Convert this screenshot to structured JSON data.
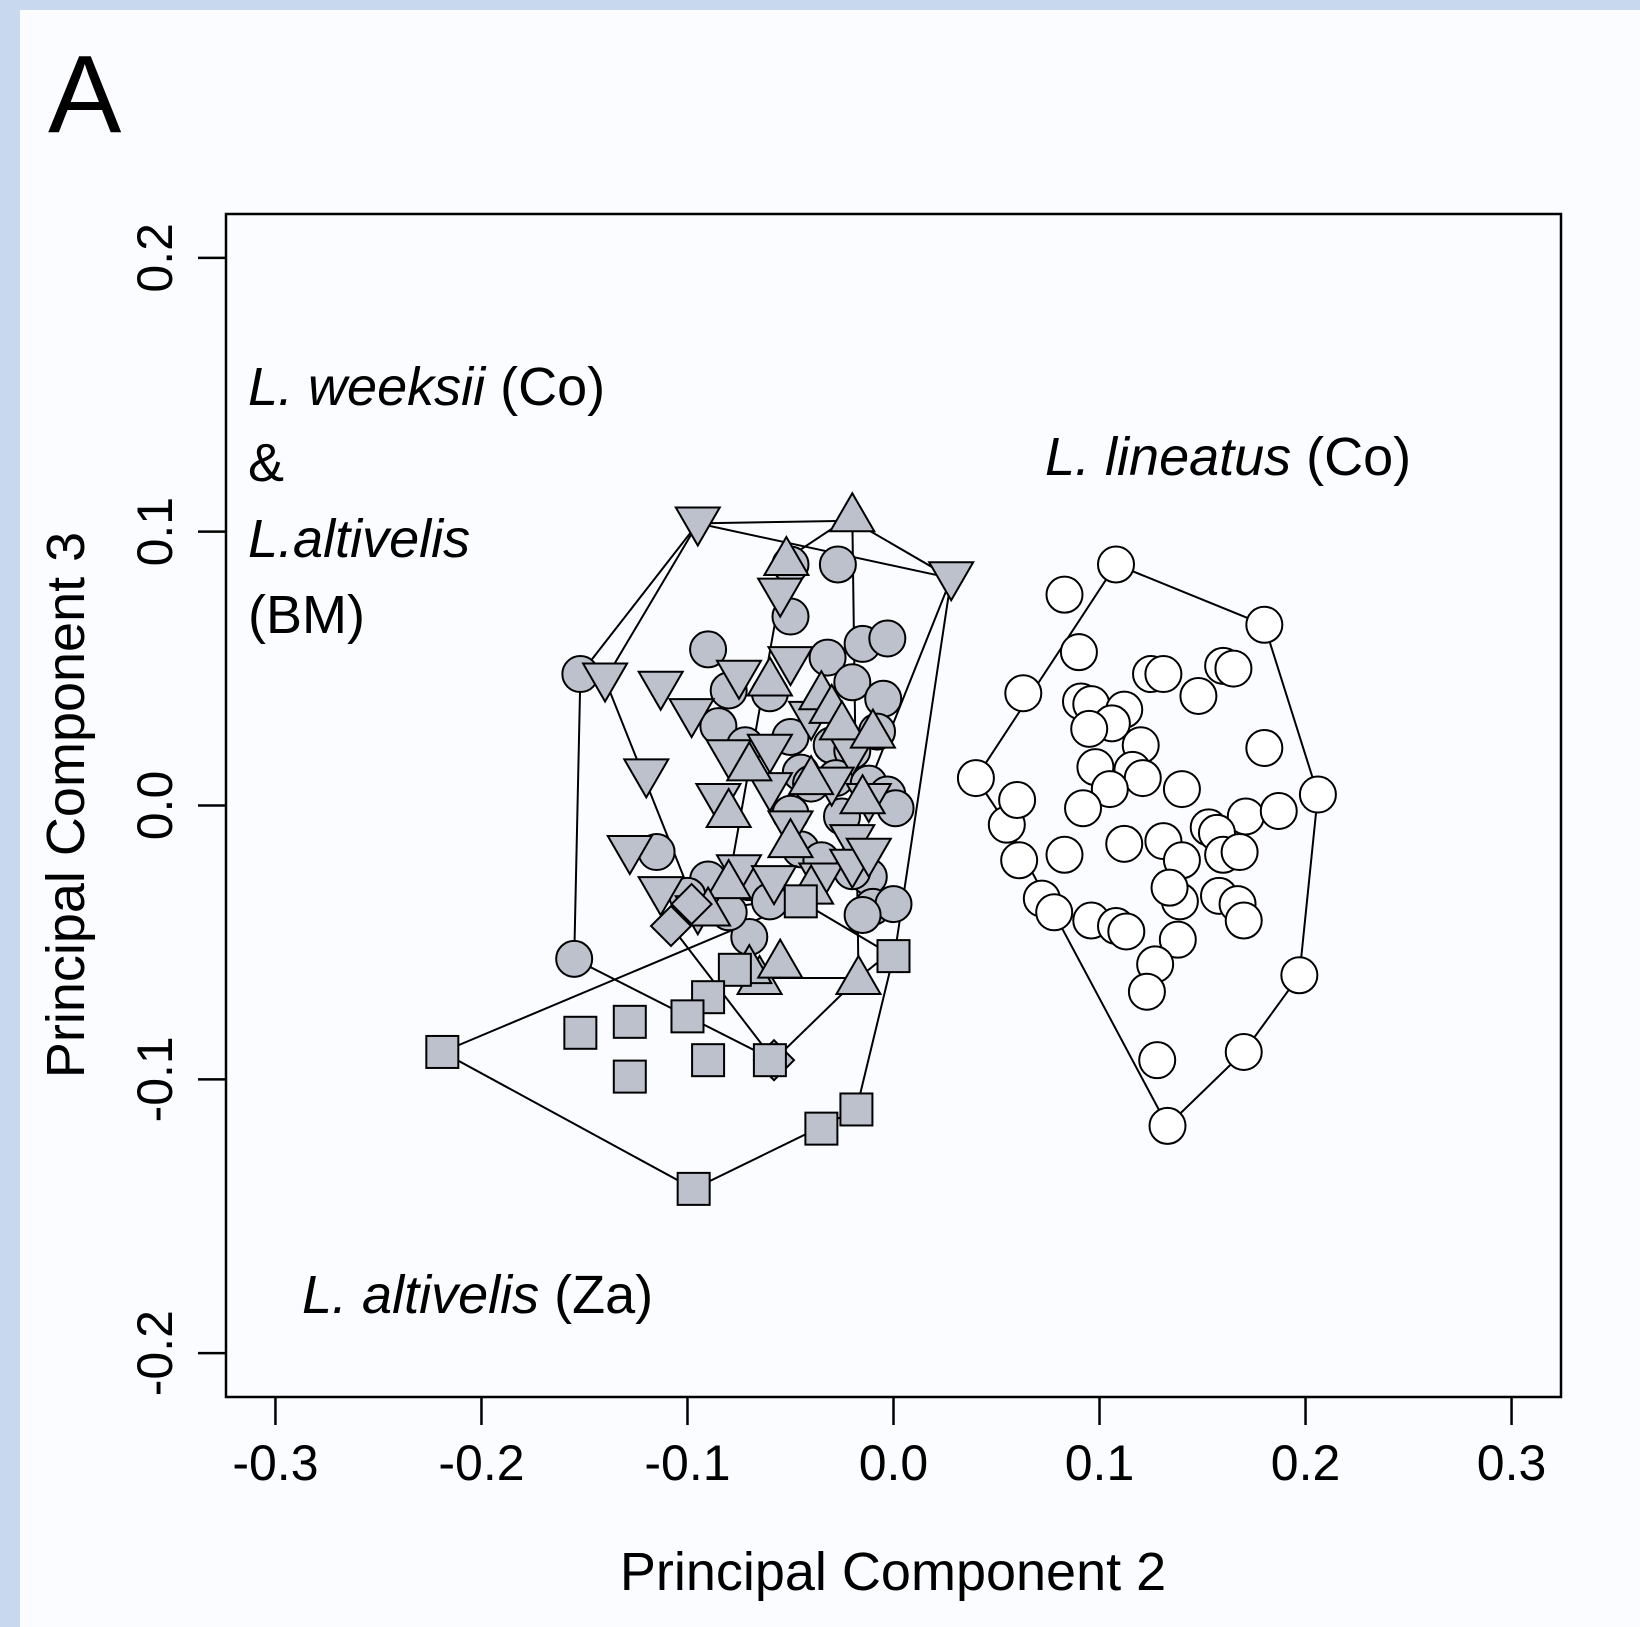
{
  "panel_label": "A",
  "chart_data": {
    "type": "scatter",
    "title": "",
    "xlabel": "Principal Component 2",
    "ylabel": "Principal Component 3",
    "xlim": [
      -0.324,
      0.324
    ],
    "ylim": [
      -0.216,
      0.216
    ],
    "xticks": [
      "-0.3",
      "-0.2",
      "-0.1",
      "0.0",
      "0.1",
      "0.2",
      "0.3"
    ],
    "yticks": [
      "-0.2",
      "-0.1",
      "0.0",
      "0.1",
      "0.2"
    ],
    "grid": false,
    "legend": "none",
    "colors": {
      "filled": "#bcc1cc",
      "open": "#ffffff",
      "stroke": "#000000"
    },
    "group_labels": [
      {
        "id": "weeksii",
        "lines": [
          [
            {
              "text": "L. weeksii",
              "italic": true
            },
            {
              "text": " (Co)",
              "italic": false
            }
          ],
          [
            {
              "text": "&",
              "italic": false
            }
          ],
          [
            {
              "text": "L.altivelis",
              "italic": true
            }
          ],
          [
            {
              "text": "(BM)",
              "italic": false
            }
          ]
        ]
      },
      {
        "id": "lineatus",
        "lines": [
          [
            {
              "text": "L. lineatus",
              "italic": true
            },
            {
              "text": " (Co)",
              "italic": false
            }
          ]
        ]
      },
      {
        "id": "altivelis_za",
        "lines": [
          [
            {
              "text": "L. altivelis",
              "italic": true
            },
            {
              "text": " (Za)",
              "italic": false
            }
          ]
        ]
      }
    ],
    "series": [
      {
        "marker": "circle",
        "fill": "open",
        "hull": [
          [
            0.04,
            0.01
          ],
          [
            0.108,
            0.088
          ],
          [
            0.18,
            0.066
          ],
          [
            0.206,
            0.004
          ],
          [
            0.197,
            -0.062
          ],
          [
            0.17,
            -0.09
          ],
          [
            0.133,
            -0.117
          ],
          [
            0.055,
            -0.007
          ]
        ],
        "points": [
          [
            0.04,
            0.01
          ],
          [
            0.108,
            0.088
          ],
          [
            0.18,
            0.066
          ],
          [
            0.206,
            0.004
          ],
          [
            0.197,
            -0.062
          ],
          [
            0.17,
            -0.09
          ],
          [
            0.133,
            -0.117
          ],
          [
            0.055,
            -0.007
          ],
          [
            0.083,
            0.077
          ],
          [
            0.09,
            0.056
          ],
          [
            0.063,
            0.041
          ],
          [
            0.091,
            0.038
          ],
          [
            0.096,
            0.037
          ],
          [
            0.112,
            0.035
          ],
          [
            0.125,
            0.048
          ],
          [
            0.131,
            0.048
          ],
          [
            0.148,
            0.04
          ],
          [
            0.16,
            0.051
          ],
          [
            0.165,
            0.05
          ],
          [
            0.106,
            0.03
          ],
          [
            0.095,
            0.028
          ],
          [
            0.12,
            0.022
          ],
          [
            0.18,
            0.021
          ],
          [
            0.098,
            0.014
          ],
          [
            0.116,
            0.013
          ],
          [
            0.121,
            0.01
          ],
          [
            0.105,
            0.006
          ],
          [
            0.14,
            0.006
          ],
          [
            0.092,
            -0.001
          ],
          [
            0.171,
            -0.004
          ],
          [
            0.187,
            -0.002
          ],
          [
            0.061,
            -0.02
          ],
          [
            0.083,
            -0.018
          ],
          [
            0.112,
            -0.014
          ],
          [
            0.131,
            -0.013
          ],
          [
            0.14,
            -0.02
          ],
          [
            0.153,
            -0.008
          ],
          [
            0.157,
            -0.01
          ],
          [
            0.16,
            -0.018
          ],
          [
            0.168,
            -0.017
          ],
          [
            0.072,
            -0.034
          ],
          [
            0.078,
            -0.039
          ],
          [
            0.096,
            -0.042
          ],
          [
            0.108,
            -0.044
          ],
          [
            0.113,
            -0.046
          ],
          [
            0.139,
            -0.035
          ],
          [
            0.158,
            -0.033
          ],
          [
            0.167,
            -0.036
          ],
          [
            0.17,
            -0.042
          ],
          [
            0.134,
            -0.03
          ],
          [
            0.138,
            -0.049
          ],
          [
            0.127,
            -0.058
          ],
          [
            0.123,
            -0.068
          ],
          [
            0.128,
            -0.093
          ],
          [
            0.06,
            0.002
          ]
        ]
      },
      {
        "marker": "circle",
        "fill": "filled",
        "hull": [
          [
            -0.152,
            0.048
          ],
          [
            -0.095,
            0.103
          ],
          [
            -0.02,
            0.104
          ],
          [
            0.028,
            0.083
          ],
          [
            0.001,
            -0.052
          ],
          [
            -0.017,
            -0.063
          ],
          [
            -0.058,
            -0.093
          ],
          [
            -0.155,
            -0.056
          ]
        ],
        "points": [
          [
            -0.152,
            0.048
          ],
          [
            -0.155,
            -0.056
          ],
          [
            -0.05,
            0.088
          ],
          [
            -0.027,
            0.088
          ],
          [
            -0.05,
            0.069
          ],
          [
            -0.09,
            0.057
          ],
          [
            -0.032,
            0.054
          ],
          [
            -0.015,
            0.059
          ],
          [
            -0.003,
            0.061
          ],
          [
            -0.08,
            0.042
          ],
          [
            -0.06,
            0.041
          ],
          [
            -0.02,
            0.045
          ],
          [
            -0.005,
            0.039
          ],
          [
            -0.085,
            0.029
          ],
          [
            -0.072,
            0.022
          ],
          [
            -0.05,
            0.025
          ],
          [
            -0.03,
            0.022
          ],
          [
            -0.02,
            0.02
          ],
          [
            -0.008,
            0.027
          ],
          [
            -0.045,
            0.012
          ],
          [
            -0.028,
            0.01
          ],
          [
            -0.04,
            0.008
          ],
          [
            -0.012,
            0.008
          ],
          [
            -0.003,
            0.004
          ],
          [
            0.001,
            -0.001
          ],
          [
            -0.05,
            -0.003
          ],
          [
            -0.025,
            -0.004
          ],
          [
            -0.045,
            -0.016
          ],
          [
            -0.035,
            -0.02
          ],
          [
            -0.115,
            -0.017
          ],
          [
            -0.09,
            -0.027
          ],
          [
            -0.07,
            -0.028
          ],
          [
            -0.012,
            -0.026
          ],
          [
            -0.02,
            -0.024
          ],
          [
            -0.07,
            -0.048
          ],
          [
            -0.1,
            -0.033
          ],
          [
            -0.08,
            -0.039
          ],
          [
            -0.06,
            -0.035
          ],
          [
            -0.01,
            -0.037
          ],
          [
            0.0,
            -0.036
          ],
          [
            -0.015,
            -0.04
          ]
        ]
      },
      {
        "marker": "triangle-down",
        "fill": "filled",
        "hull": [
          [
            -0.095,
            0.103
          ],
          [
            0.028,
            0.083
          ],
          [
            -0.033,
            -0.032
          ],
          [
            -0.095,
            -0.039
          ],
          [
            -0.14,
            0.046
          ]
        ],
        "points": [
          [
            -0.095,
            0.103
          ],
          [
            0.028,
            0.083
          ],
          [
            -0.055,
            0.077
          ],
          [
            -0.14,
            0.046
          ],
          [
            -0.113,
            0.043
          ],
          [
            -0.075,
            0.047
          ],
          [
            -0.05,
            0.052
          ],
          [
            -0.098,
            0.033
          ],
          [
            -0.08,
            0.018
          ],
          [
            -0.04,
            0.032
          ],
          [
            -0.06,
            0.02
          ],
          [
            -0.02,
            0.019
          ],
          [
            -0.12,
            0.011
          ],
          [
            -0.085,
            0.002
          ],
          [
            -0.06,
            0.006
          ],
          [
            -0.03,
            0.008
          ],
          [
            -0.012,
            0.002
          ],
          [
            -0.128,
            -0.017
          ],
          [
            -0.05,
            -0.008
          ],
          [
            -0.02,
            -0.013
          ],
          [
            -0.075,
            -0.024
          ],
          [
            -0.058,
            -0.028
          ],
          [
            -0.035,
            -0.027
          ],
          [
            -0.02,
            -0.022
          ],
          [
            -0.012,
            -0.018
          ],
          [
            -0.095,
            -0.039
          ],
          [
            -0.113,
            -0.032
          ]
        ]
      },
      {
        "marker": "triangle-up",
        "fill": "filled",
        "hull": [
          [
            -0.02,
            0.106
          ],
          [
            -0.052,
            0.09
          ],
          [
            -0.08,
            -0.028
          ],
          [
            -0.065,
            -0.063
          ],
          [
            -0.017,
            -0.063
          ]
        ],
        "points": [
          [
            -0.02,
            0.106
          ],
          [
            -0.052,
            0.09
          ],
          [
            -0.06,
            0.046
          ],
          [
            -0.035,
            0.041
          ],
          [
            -0.03,
            0.036
          ],
          [
            -0.025,
            0.03
          ],
          [
            -0.01,
            0.027
          ],
          [
            -0.07,
            0.015
          ],
          [
            -0.04,
            0.01
          ],
          [
            -0.015,
            0.003
          ],
          [
            -0.08,
            -0.002
          ],
          [
            -0.05,
            -0.013
          ],
          [
            -0.08,
            -0.028
          ],
          [
            -0.04,
            -0.03
          ],
          [
            -0.065,
            -0.063
          ],
          [
            -0.07,
            -0.059
          ],
          [
            -0.055,
            -0.057
          ],
          [
            -0.017,
            -0.063
          ],
          [
            -0.09,
            -0.038
          ]
        ]
      },
      {
        "marker": "diamond",
        "fill": "filled",
        "hull": [
          [
            -0.108,
            -0.044
          ],
          [
            -0.058,
            -0.093
          ]
        ],
        "points": [
          [
            -0.108,
            -0.044
          ],
          [
            -0.058,
            -0.093
          ],
          [
            -0.098,
            -0.036
          ]
        ]
      },
      {
        "marker": "square",
        "fill": "filled",
        "hull": [
          [
            -0.219,
            -0.09
          ],
          [
            -0.045,
            -0.035
          ],
          [
            0.0,
            -0.055
          ],
          [
            -0.018,
            -0.111
          ],
          [
            -0.097,
            -0.14
          ]
        ],
        "points": [
          [
            -0.219,
            -0.09
          ],
          [
            -0.097,
            -0.14
          ],
          [
            -0.035,
            -0.118
          ],
          [
            -0.018,
            -0.111
          ],
          [
            0.0,
            -0.055
          ],
          [
            -0.045,
            -0.035
          ],
          [
            -0.077,
            -0.06
          ],
          [
            -0.09,
            -0.07
          ],
          [
            -0.1,
            -0.077
          ],
          [
            -0.152,
            -0.083
          ],
          [
            -0.128,
            -0.079
          ],
          [
            -0.128,
            -0.099
          ],
          [
            -0.09,
            -0.093
          ],
          [
            -0.06,
            -0.093
          ]
        ]
      }
    ]
  }
}
